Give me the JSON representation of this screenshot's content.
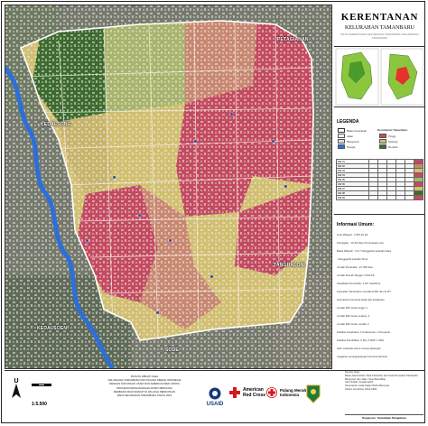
{
  "title": "KERENTANAN",
  "subtitle": "KELURAHAN TAMANBARU",
  "tagline": "PETA KERENTANAN KELURAHAN TAMANBARU KECAMATAN TAMANSARI",
  "map": {
    "places": [
      "PETAGIAHAN",
      "KEDALSONG",
      "TANGHALONI",
      "KEDALSOEN",
      "SODE"
    ],
    "colors": {
      "low": "#3d6b2e",
      "low_medium": "#a8b46a",
      "medium": "#d2bf6e",
      "medium_high": "#c9876f",
      "high": "#c44a5f",
      "river": "#2d6fd8",
      "building": "#dcdcdc"
    },
    "coords_top": [
      "108°00'E",
      "108°0'E",
      "108°0'E",
      "108°0'E"
    ],
    "coords_side": [
      "6°0'S",
      "6°0'S",
      "6°0'S",
      "6°0'S"
    ]
  },
  "legend": {
    "title": "LEGENDA",
    "items": [
      "Batas Kelurahan",
      "Jalan",
      "Bangunan",
      "Sungai"
    ],
    "risk_title": "Kerentanan Tamanbaru",
    "risk_items": [
      "Tinggi",
      "Sedang",
      "Rendah"
    ],
    "table_rows": [
      "RW 01",
      "RW 02",
      "RW 03",
      "RW 04",
      "RW 05",
      "RW 06",
      "RW 07",
      "RW 08",
      "RW 09"
    ]
  },
  "info": {
    "title": "Informasi Umum:",
    "lines": [
      "Luas Wilayah    : 1.867,01 Ha",
      "Ketinggian       : 10-30 Meter Permukaan Laut",
      "Batas Wilayah  : 5 & 7 Mengganbil sebelah Utara",
      "                         : Mengganbil sebelah Timur",
      "Jumlah Penduduk : 21.789 Jiwa",
      "Jumlah Rumah Tangga: 6.542 KK",
      "Kepadatan Penduduk: 1.167 Jiwa/Km2",
      "Kelurahan Tamanbaru memiliki 9 RW dan 41 RT",
      "Kerentanan bencana banjir dan kebakaran",
      "Jumlah RW rentan tinggi: 4",
      "Jumlah RW rentan sedang: 3",
      "Jumlah RW rentan rendah: 2",
      "Fasilitas Kesehatan: 1 Puskesmas, 4 Posyandu",
      "Fasilitas Pendidikan: 6 SD, 2 SMP, 1 SMA",
      "Jalur evakuasi utama menuju lapangan",
      "Anggaran penanggulangan bencana tahunan"
    ]
  },
  "bottom": {
    "north_symbol": "U",
    "scale": "1:5.500",
    "credits": [
      "PETA INI DIBUAT OLEH",
      "KELURAHAN TAMANBARU DAN PALANG MERAH INDONESIA",
      "DENGAN DUKUNGAN USAID DAN AMERICAN RED CROSS",
      "PROGRAM PENGURANGAN RISIKO BENCANA",
      "BERBASIS MASYARAKAT DI WILAYAH PERKOTAAN",
      "PADA KELURAHAN TAMANBARU TAHUN 2019"
    ],
    "usaid": "USAID",
    "arc": "American Red Cross",
    "pmi": "Palang Merah Indonesia",
    "source_lines": [
      "Sumber Data:",
      "Batas Administrasi: Data Kelurahan dan Hasil Pemetaan Partisipatif",
      "Bangunan dan Jalan: OpenStreetMap",
      "Citra Satelit: Google Earth",
      "Kerentanan: Hasil Kajian Risiko Bencana",
      "Sistem Koordinat: WGS 1984"
    ],
    "compiler": "Penyusun : Kelurahan Tamanbaru"
  }
}
